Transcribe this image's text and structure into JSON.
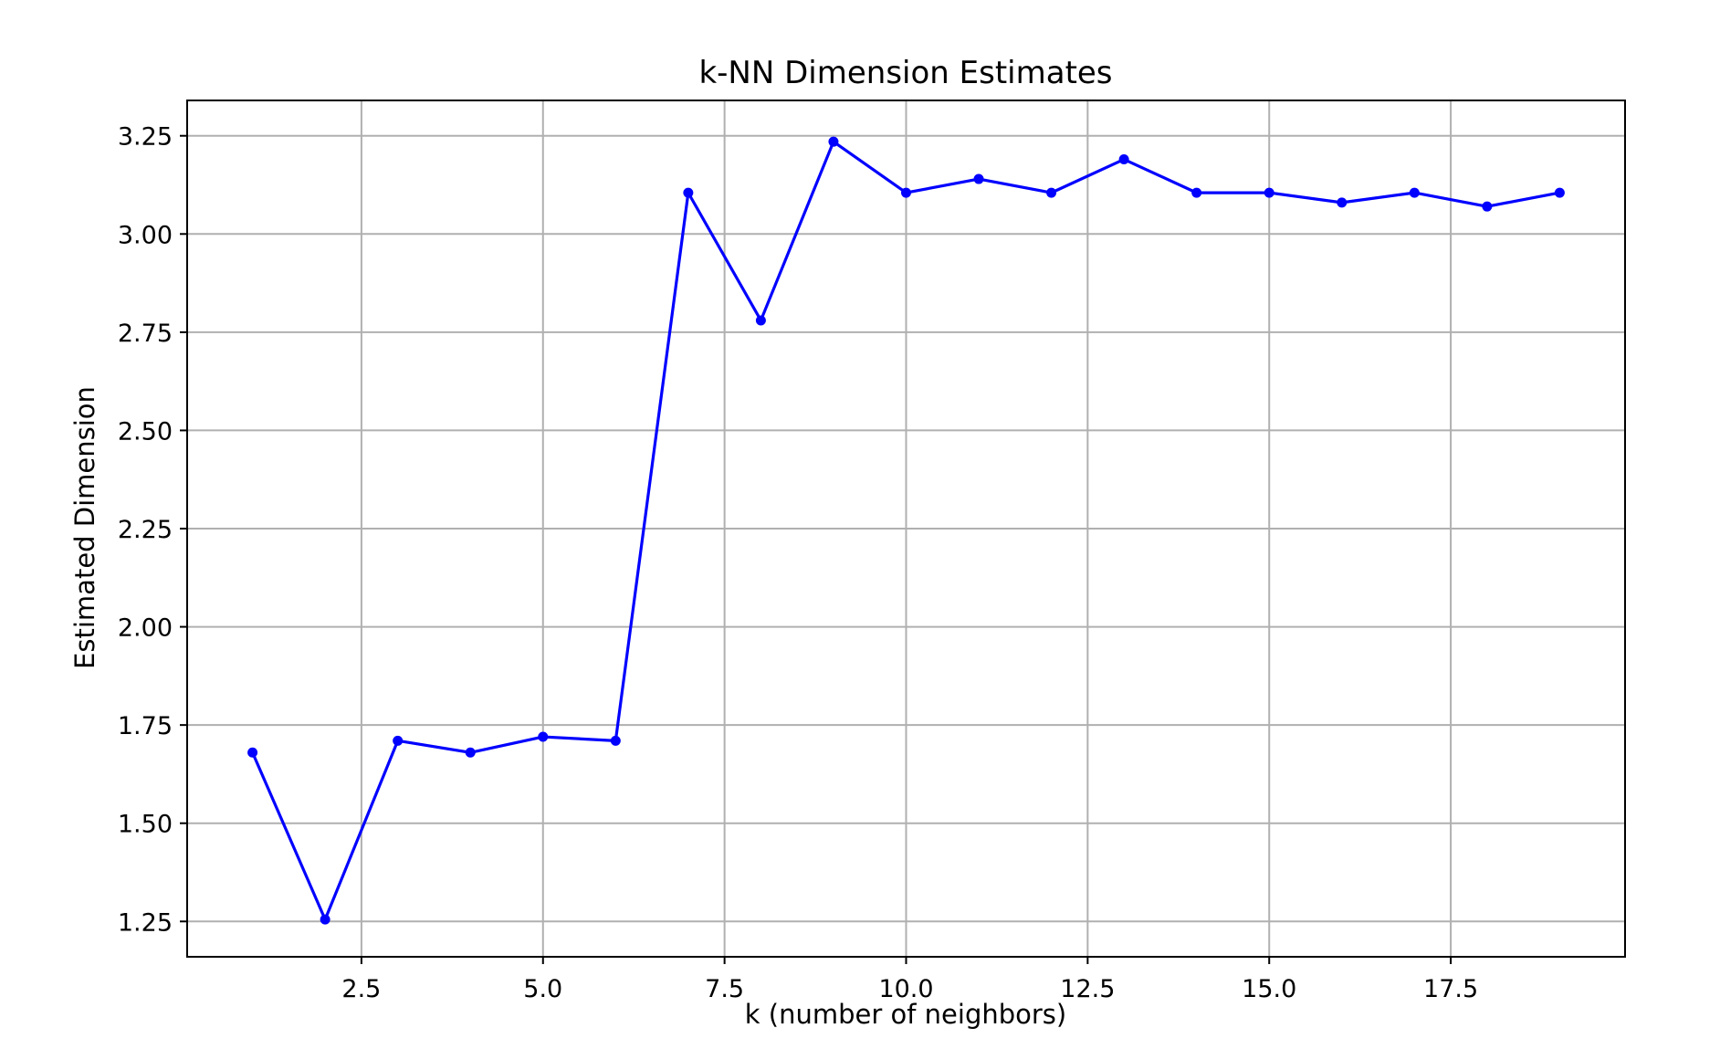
{
  "chart_data": {
    "type": "line",
    "title": "k-NN Dimension Estimates",
    "xlabel": "k (number of neighbors)",
    "ylabel": "Estimated Dimension",
    "xlim": [
      0.1,
      19.9
    ],
    "ylim": [
      1.16,
      3.34
    ],
    "x_ticks": [
      2.5,
      5.0,
      7.5,
      10.0,
      12.5,
      15.0,
      17.5
    ],
    "x_tick_labels": [
      "2.5",
      "5.0",
      "7.5",
      "10.0",
      "12.5",
      "15.0",
      "17.5"
    ],
    "y_ticks": [
      1.25,
      1.5,
      1.75,
      2.0,
      2.25,
      2.5,
      2.75,
      3.0,
      3.25
    ],
    "y_tick_labels": [
      "1.25",
      "1.50",
      "1.75",
      "2.00",
      "2.25",
      "2.50",
      "2.75",
      "3.00",
      "3.25"
    ],
    "grid": true,
    "legend": "none",
    "series": [
      {
        "color": "#0000ff",
        "marker": "circle",
        "x": [
          1,
          2,
          3,
          4,
          5,
          6,
          7,
          8,
          9,
          10,
          11,
          12,
          13,
          14,
          15,
          16,
          17,
          18,
          19
        ],
        "y": [
          1.68,
          1.255,
          1.71,
          1.68,
          1.72,
          1.71,
          3.105,
          2.78,
          3.235,
          3.105,
          3.14,
          3.105,
          3.19,
          3.105,
          3.105,
          3.08,
          3.105,
          3.07,
          3.105
        ]
      }
    ]
  }
}
